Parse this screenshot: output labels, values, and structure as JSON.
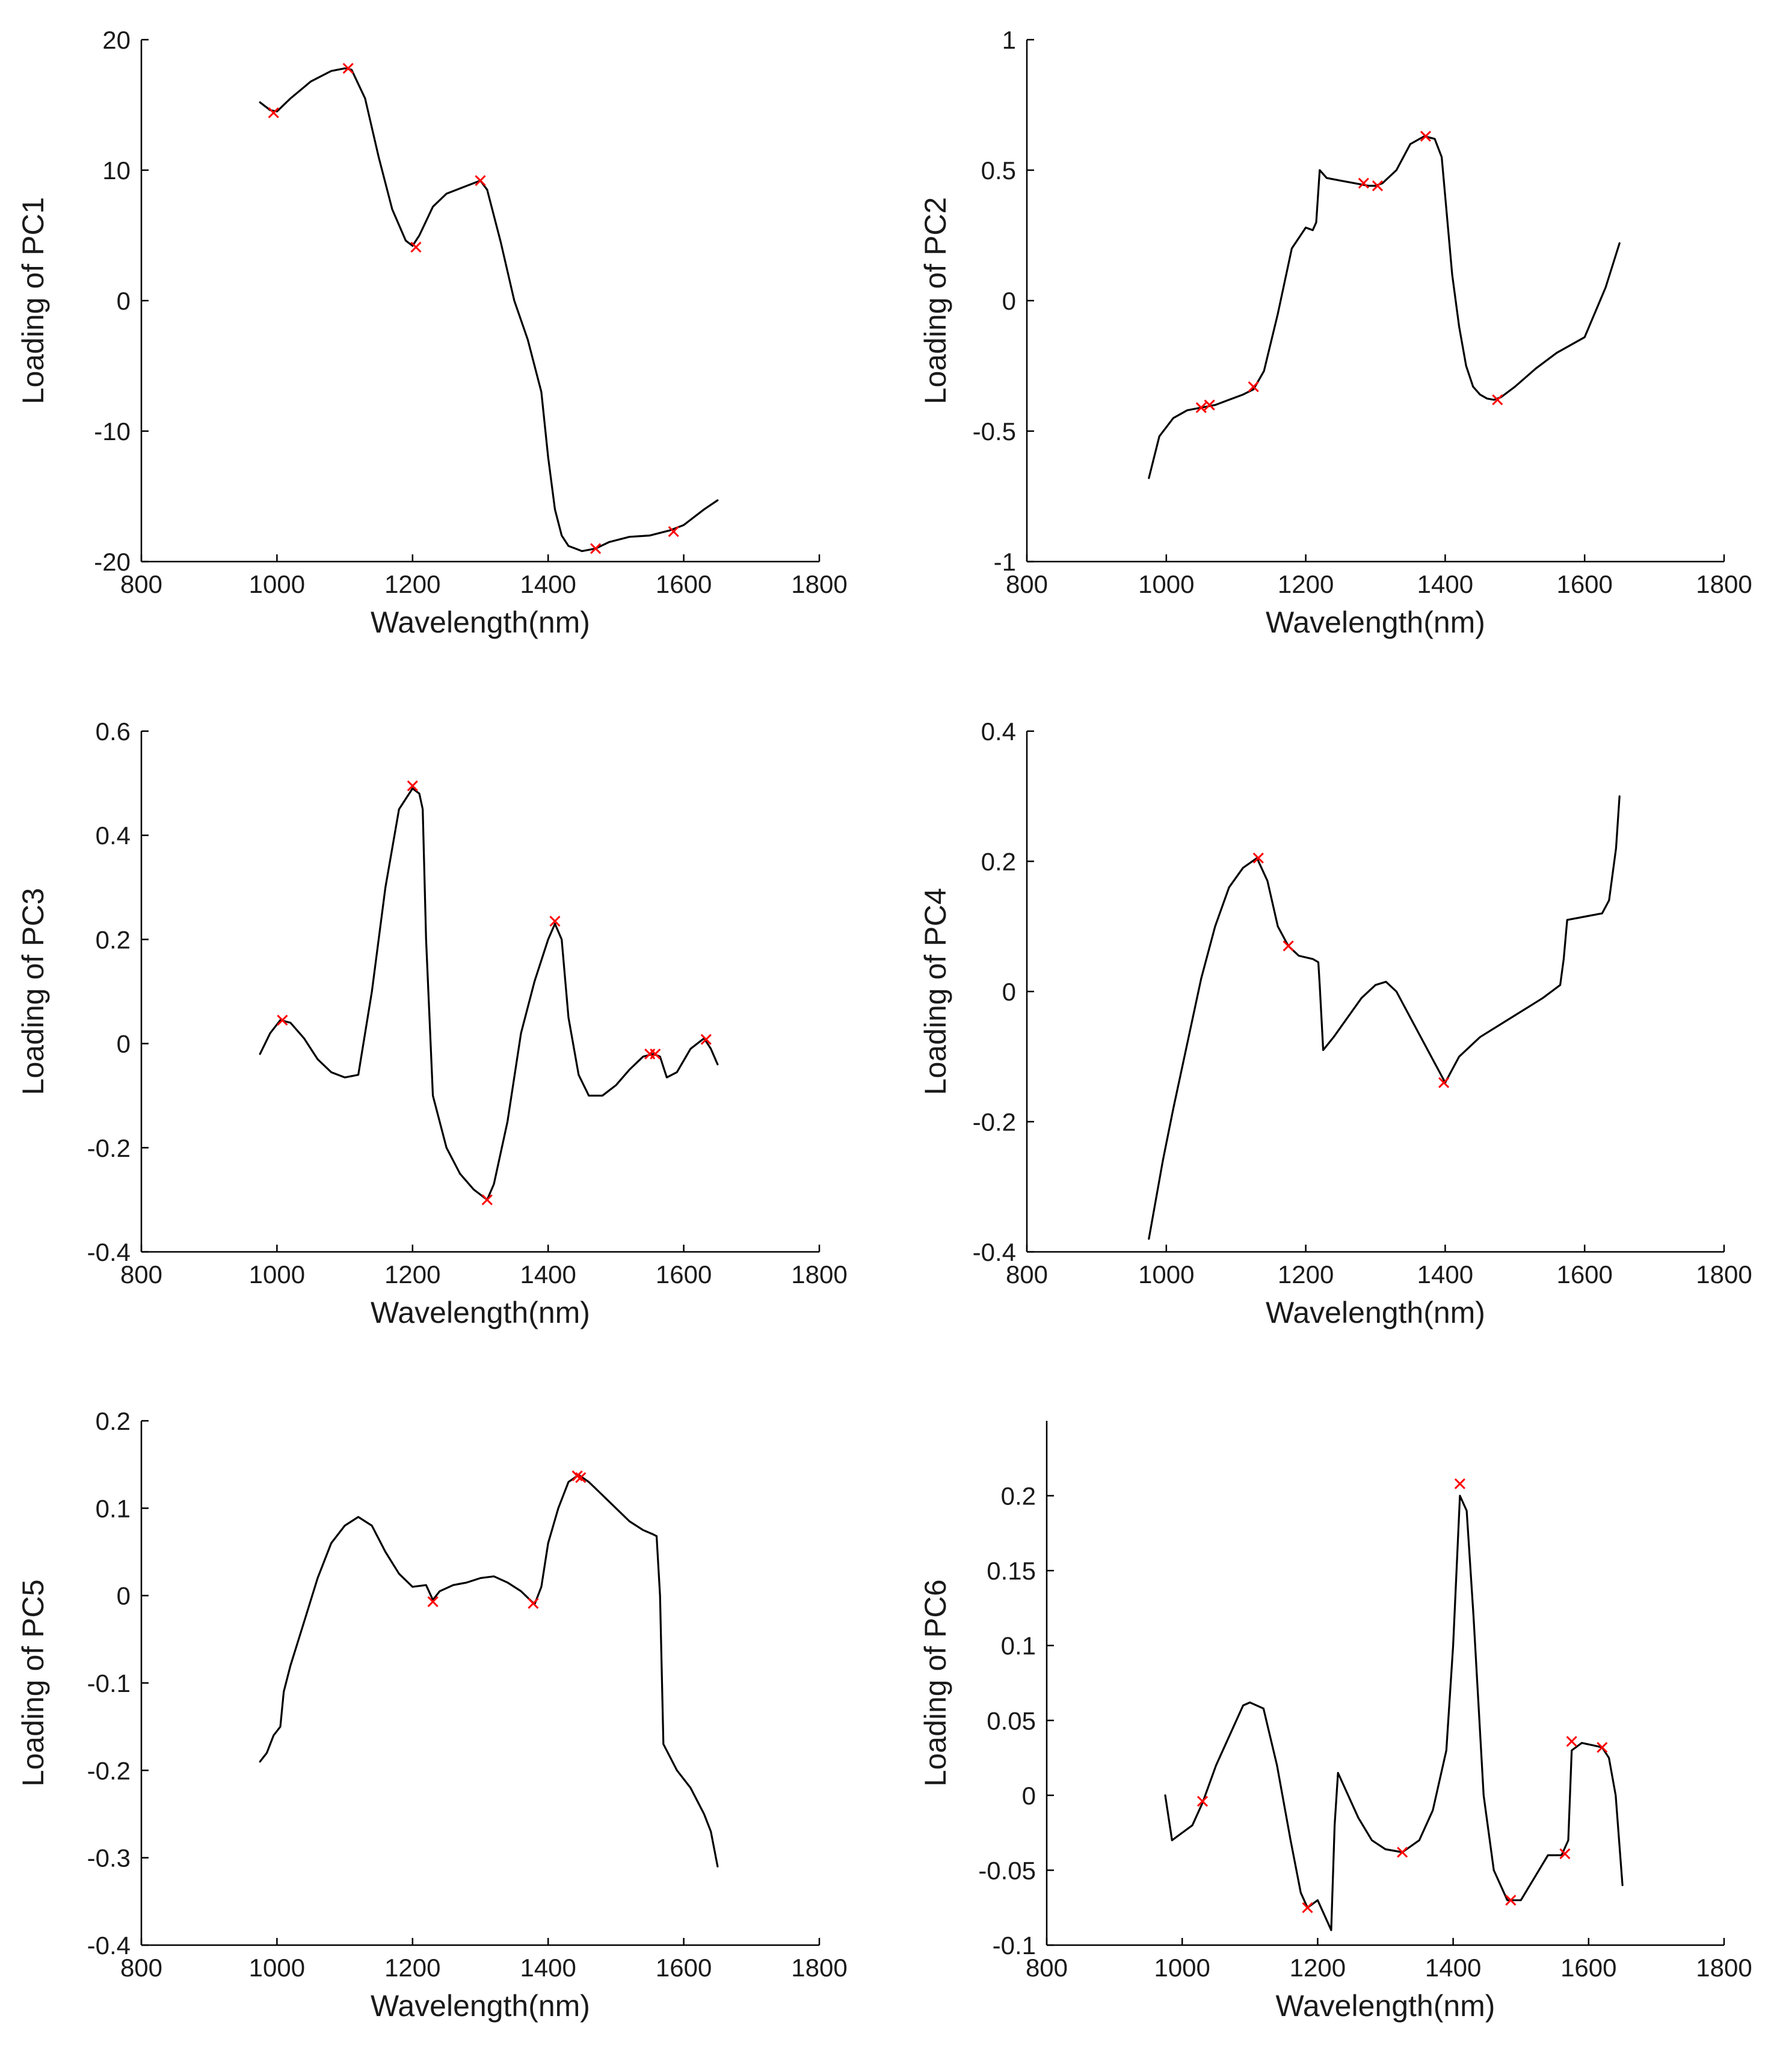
{
  "figure": {
    "panel_ids": [
      "pc1",
      "pc2",
      "pc3",
      "pc4",
      "pc5",
      "pc6"
    ]
  },
  "chart_data": [
    {
      "id": "pc1",
      "type": "line",
      "title": "",
      "xlabel": "Wavelength(nm)",
      "ylabel": "Loading of PC1",
      "xlim": [
        800,
        1800
      ],
      "ylim": [
        -20,
        20
      ],
      "xticks": [
        800,
        1000,
        1200,
        1400,
        1600,
        1800
      ],
      "xtick_labels": [
        "800",
        "1000",
        "1200",
        "1400",
        "1600",
        "1800"
      ],
      "yticks": [
        -20,
        -10,
        0,
        10,
        20
      ],
      "ytick_labels": [
        "-20",
        "-10",
        "0",
        "10",
        "20"
      ],
      "line_color": "#000000",
      "marker_color": "#ff0000",
      "x": [
        975,
        990,
        1000,
        1020,
        1050,
        1080,
        1100,
        1110,
        1130,
        1150,
        1170,
        1190,
        1200,
        1210,
        1230,
        1250,
        1270,
        1300,
        1310,
        1330,
        1350,
        1370,
        1390,
        1400,
        1410,
        1420,
        1430,
        1440,
        1450,
        1470,
        1490,
        1520,
        1550,
        1580,
        1600,
        1630,
        1650
      ],
      "y": [
        15.2,
        14.6,
        14.5,
        15.5,
        16.8,
        17.6,
        17.8,
        17.7,
        15.5,
        11,
        7,
        4.6,
        4.2,
        5,
        7.2,
        8.2,
        8.6,
        9.2,
        8.5,
        4.5,
        0,
        -3,
        -7,
        -12,
        -16,
        -18,
        -18.8,
        -19,
        -19.2,
        -19,
        -18.5,
        -18.1,
        -18,
        -17.6,
        -17.2,
        -16,
        -15.3
      ],
      "marker_x": [
        995,
        1105,
        1205,
        1300,
        1470,
        1585
      ],
      "marker_y": [
        14.4,
        17.8,
        4.1,
        9.2,
        -19,
        -17.7
      ]
    },
    {
      "id": "pc2",
      "type": "line",
      "title": "",
      "xlabel": "Wavelength(nm)",
      "ylabel": "Loading of PC2",
      "xlim": [
        800,
        1800
      ],
      "ylim": [
        -1,
        1
      ],
      "xticks": [
        800,
        1000,
        1200,
        1400,
        1600,
        1800
      ],
      "xtick_labels": [
        "800",
        "1000",
        "1200",
        "1400",
        "1600",
        "1800"
      ],
      "yticks": [
        -1,
        -0.5,
        0,
        0.5,
        1
      ],
      "ytick_labels": [
        "-1",
        "-0.5",
        "0",
        "0.5",
        "1"
      ],
      "line_color": "#000000",
      "marker_color": "#ff0000",
      "x": [
        975,
        990,
        1010,
        1030,
        1050,
        1070,
        1090,
        1110,
        1125,
        1140,
        1160,
        1180,
        1200,
        1210,
        1215,
        1220,
        1230,
        1250,
        1270,
        1290,
        1300,
        1310,
        1330,
        1350,
        1370,
        1385,
        1395,
        1400,
        1410,
        1420,
        1430,
        1440,
        1450,
        1460,
        1470,
        1480,
        1500,
        1530,
        1560,
        1600,
        1630,
        1650
      ],
      "y": [
        -0.68,
        -0.52,
        -0.45,
        -0.42,
        -0.41,
        -0.4,
        -0.38,
        -0.36,
        -0.34,
        -0.27,
        -0.05,
        0.2,
        0.28,
        0.27,
        0.3,
        0.5,
        0.47,
        0.46,
        0.45,
        0.44,
        0.44,
        0.45,
        0.5,
        0.6,
        0.63,
        0.62,
        0.55,
        0.4,
        0.1,
        -0.1,
        -0.25,
        -0.33,
        -0.36,
        -0.375,
        -0.38,
        -0.37,
        -0.33,
        -0.26,
        -0.2,
        -0.14,
        0.05,
        0.22
      ],
      "marker_x": [
        1050,
        1062,
        1125,
        1283,
        1303,
        1372,
        1475
      ],
      "marker_y": [
        -0.41,
        -0.4,
        -0.33,
        0.45,
        0.44,
        0.63,
        -0.38
      ]
    },
    {
      "id": "pc3",
      "type": "line",
      "title": "",
      "xlabel": "Wavelength(nm)",
      "ylabel": "Loading of PC3",
      "xlim": [
        800,
        1800
      ],
      "ylim": [
        -0.4,
        0.6
      ],
      "xticks": [
        800,
        1000,
        1200,
        1400,
        1600,
        1800
      ],
      "xtick_labels": [
        "800",
        "1000",
        "1200",
        "1400",
        "1600",
        "1800"
      ],
      "yticks": [
        -0.4,
        -0.2,
        0,
        0.2,
        0.4,
        0.6
      ],
      "ytick_labels": [
        "-0.4",
        "-0.2",
        "0",
        "0.2",
        "0.4",
        "0.6"
      ],
      "line_color": "#000000",
      "marker_color": "#ff0000",
      "x": [
        975,
        990,
        1005,
        1020,
        1040,
        1060,
        1080,
        1100,
        1120,
        1140,
        1160,
        1180,
        1200,
        1210,
        1215,
        1220,
        1230,
        1250,
        1270,
        1290,
        1310,
        1320,
        1340,
        1360,
        1380,
        1400,
        1410,
        1420,
        1430,
        1445,
        1460,
        1480,
        1500,
        1520,
        1540,
        1555,
        1565,
        1575,
        1590,
        1610,
        1630,
        1640,
        1650
      ],
      "y": [
        -0.02,
        0.02,
        0.045,
        0.04,
        0.01,
        -0.03,
        -0.055,
        -0.065,
        -0.06,
        0.1,
        0.3,
        0.45,
        0.49,
        0.48,
        0.45,
        0.2,
        -0.1,
        -0.2,
        -0.25,
        -0.28,
        -0.3,
        -0.27,
        -0.15,
        0.02,
        0.12,
        0.2,
        0.23,
        0.2,
        0.05,
        -0.06,
        -0.1,
        -0.1,
        -0.08,
        -0.05,
        -0.025,
        -0.02,
        -0.025,
        -0.065,
        -0.055,
        -0.01,
        0.01,
        -0.01,
        -0.04
      ],
      "marker_x": [
        1008,
        1200,
        1310,
        1410,
        1550,
        1558,
        1633
      ],
      "marker_y": [
        0.045,
        0.495,
        -0.3,
        0.235,
        -0.02,
        -0.02,
        0.008
      ]
    },
    {
      "id": "pc4",
      "type": "line",
      "title": "",
      "xlabel": "Wavelength(nm)",
      "ylabel": "Loading of PC4",
      "xlim": [
        800,
        1800
      ],
      "ylim": [
        -0.4,
        0.4
      ],
      "xticks": [
        800,
        1000,
        1200,
        1400,
        1600,
        1800
      ],
      "xtick_labels": [
        "800",
        "1000",
        "1200",
        "1400",
        "1600",
        "1800"
      ],
      "yticks": [
        -0.4,
        -0.2,
        0,
        0.2,
        0.4
      ],
      "ytick_labels": [
        "-0.4",
        "-0.2",
        "0",
        "0.2",
        "0.4"
      ],
      "line_color": "#000000",
      "marker_color": "#ff0000",
      "x": [
        975,
        985,
        995,
        1010,
        1030,
        1050,
        1070,
        1090,
        1110,
        1130,
        1145,
        1160,
        1175,
        1190,
        1210,
        1218,
        1220,
        1225,
        1240,
        1260,
        1280,
        1300,
        1315,
        1330,
        1350,
        1370,
        1385,
        1400,
        1420,
        1450,
        1480,
        1510,
        1540,
        1565,
        1570,
        1575,
        1600,
        1625,
        1635,
        1645,
        1650
      ],
      "y": [
        -0.38,
        -0.32,
        -0.26,
        -0.18,
        -0.08,
        0.02,
        0.1,
        0.16,
        0.19,
        0.205,
        0.17,
        0.1,
        0.07,
        0.055,
        0.05,
        0.045,
        0.01,
        -0.09,
        -0.07,
        -0.04,
        -0.01,
        0.01,
        0.015,
        0.0,
        -0.04,
        -0.08,
        -0.11,
        -0.14,
        -0.1,
        -0.07,
        -0.05,
        -0.03,
        -0.01,
        0.01,
        0.05,
        0.11,
        0.115,
        0.12,
        0.14,
        0.22,
        0.3
      ],
      "marker_x": [
        1132,
        1175,
        1398
      ],
      "marker_y": [
        0.205,
        0.07,
        -0.14
      ]
    },
    {
      "id": "pc5",
      "type": "line",
      "title": "",
      "xlabel": "Wavelength(nm)",
      "ylabel": "Loading of PC5",
      "xlim": [
        800,
        1800
      ],
      "ylim": [
        -0.4,
        0.2
      ],
      "xticks": [
        800,
        1000,
        1200,
        1400,
        1600,
        1800
      ],
      "xtick_labels": [
        "800",
        "1000",
        "1200",
        "1400",
        "1600",
        "1800"
      ],
      "yticks": [
        -0.4,
        -0.3,
        -0.2,
        -0.1,
        0,
        0.1,
        0.2
      ],
      "ytick_labels": [
        "-0.4",
        "-0.3",
        "-0.2",
        "-0.1",
        "0",
        "0.1",
        "0.2"
      ],
      "line_color": "#000000",
      "marker_color": "#ff0000",
      "x": [
        975,
        985,
        995,
        1005,
        1010,
        1020,
        1040,
        1060,
        1080,
        1100,
        1120,
        1140,
        1160,
        1180,
        1200,
        1220,
        1230,
        1240,
        1260,
        1280,
        1300,
        1320,
        1340,
        1360,
        1380,
        1390,
        1400,
        1415,
        1430,
        1445,
        1460,
        1480,
        1500,
        1520,
        1540,
        1555,
        1560,
        1565,
        1570,
        1590,
        1610,
        1630,
        1640,
        1650
      ],
      "y": [
        -0.19,
        -0.18,
        -0.16,
        -0.15,
        -0.11,
        -0.08,
        -0.03,
        0.02,
        0.06,
        0.08,
        0.09,
        0.08,
        0.05,
        0.025,
        0.01,
        0.012,
        -0.005,
        0.005,
        0.012,
        0.015,
        0.02,
        0.022,
        0.015,
        0.005,
        -0.01,
        0.01,
        0.06,
        0.1,
        0.13,
        0.138,
        0.13,
        0.115,
        0.1,
        0.085,
        0.075,
        0.07,
        0.068,
        0.0,
        -0.17,
        -0.2,
        -0.22,
        -0.25,
        -0.27,
        -0.31
      ],
      "marker_x": [
        1230,
        1378,
        1443,
        1448
      ],
      "marker_y": [
        -0.007,
        -0.009,
        0.137,
        0.135
      ]
    },
    {
      "id": "pc6",
      "type": "line",
      "title": "",
      "xlabel": "Wavelength(nm)",
      "ylabel": "Loading of PC6",
      "xlim": [
        800,
        1800
      ],
      "ylim": [
        -0.1,
        0.25
      ],
      "xticks": [
        800,
        1000,
        1200,
        1400,
        1600,
        1800
      ],
      "xtick_labels": [
        "800",
        "1000",
        "1200",
        "1400",
        "1600",
        "1800"
      ],
      "yticks": [
        -0.1,
        -0.05,
        0,
        0.05,
        0.1,
        0.15,
        0.2
      ],
      "ytick_labels": [
        "-0.1",
        "-0.05",
        "0",
        "0.05",
        "0.1",
        "0.15",
        "0.2"
      ],
      "line_color": "#000000",
      "marker_color": "#ff0000",
      "x": [
        975,
        985,
        1000,
        1015,
        1030,
        1050,
        1070,
        1090,
        1100,
        1120,
        1140,
        1160,
        1175,
        1185,
        1200,
        1210,
        1220,
        1225,
        1230,
        1245,
        1260,
        1280,
        1300,
        1325,
        1350,
        1370,
        1390,
        1400,
        1410,
        1420,
        1430,
        1445,
        1460,
        1480,
        1500,
        1520,
        1540,
        1560,
        1570,
        1575,
        1590,
        1610,
        1620,
        1630,
        1640,
        1650
      ],
      "y": [
        0.0,
        -0.03,
        -0.025,
        -0.02,
        -0.005,
        0.02,
        0.04,
        0.06,
        0.062,
        0.058,
        0.02,
        -0.03,
        -0.065,
        -0.075,
        -0.07,
        -0.08,
        -0.09,
        -0.02,
        0.015,
        0.0,
        -0.015,
        -0.03,
        -0.036,
        -0.038,
        -0.03,
        -0.01,
        0.03,
        0.1,
        0.2,
        0.19,
        0.12,
        0.0,
        -0.05,
        -0.07,
        -0.07,
        -0.055,
        -0.04,
        -0.04,
        -0.03,
        0.03,
        0.035,
        0.033,
        0.032,
        0.025,
        0.0,
        -0.06
      ],
      "marker_x": [
        1030,
        1185,
        1325,
        1410,
        1485,
        1565,
        1575,
        1620
      ],
      "marker_y": [
        -0.004,
        -0.075,
        -0.038,
        0.208,
        -0.07,
        -0.039,
        0.036,
        0.032
      ]
    }
  ]
}
